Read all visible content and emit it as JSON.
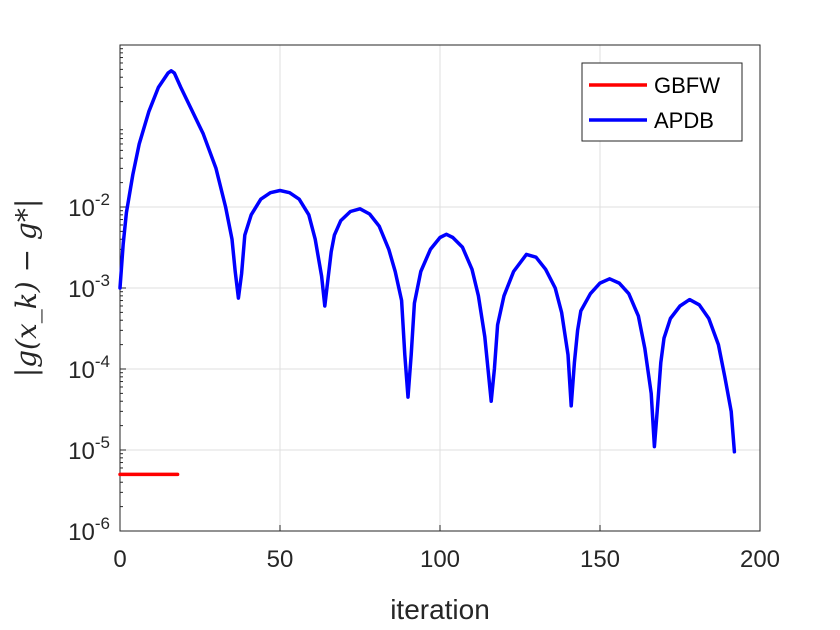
{
  "chart_data": {
    "type": "line",
    "xlabel": "iteration",
    "ylabel": "|g(x_k) − g*|",
    "xlim": [
      0,
      200
    ],
    "ylim_log10": [
      -6,
      0.0
    ],
    "y_scale": "log",
    "grid": true,
    "legend_placement": "top-right",
    "x_ticks": [
      0,
      50,
      100,
      150,
      200
    ],
    "x_tick_labels": [
      "0",
      "50",
      "100",
      "150",
      "200"
    ],
    "y_ticks_exp": [
      -2,
      -3,
      -4,
      -5,
      -6
    ],
    "y_tick_base": "10",
    "y_tick_exponents": [
      "-2",
      "-3",
      "-4",
      "-5",
      "-6"
    ],
    "series": [
      {
        "name": "GBFW",
        "color": "#ff0000",
        "x": [
          0,
          18
        ],
        "y": [
          5e-06,
          5e-06
        ]
      },
      {
        "name": "APDB",
        "color": "#0000ff",
        "x": [
          0,
          1,
          2,
          4,
          6,
          9,
          12,
          15,
          16,
          17,
          19,
          22,
          26,
          30,
          33,
          35,
          36,
          37,
          38,
          39,
          41,
          44,
          47,
          50,
          53,
          56,
          59,
          61,
          63,
          64,
          65,
          66,
          67,
          69,
          72,
          75,
          78,
          81,
          84,
          86,
          88,
          89,
          90,
          91,
          92,
          94,
          97,
          100,
          102,
          104,
          107,
          110,
          112,
          114,
          115,
          116,
          117,
          118,
          120,
          123,
          127,
          130,
          133,
          136,
          138,
          140,
          141,
          142,
          143,
          144,
          147,
          150,
          153,
          156,
          159,
          162,
          164,
          166,
          167,
          168,
          169,
          170,
          172,
          175,
          178,
          181,
          184,
          187,
          189,
          191,
          192
        ],
        "y": [
          0.001,
          0.0035,
          0.0085,
          0.025,
          0.06,
          0.15,
          0.3,
          0.45,
          0.48,
          0.45,
          0.3,
          0.17,
          0.08,
          0.03,
          0.01,
          0.004,
          0.0016,
          0.00075,
          0.0015,
          0.0045,
          0.008,
          0.0125,
          0.015,
          0.016,
          0.015,
          0.0125,
          0.008,
          0.004,
          0.0014,
          0.0006,
          0.0013,
          0.0028,
          0.0045,
          0.0068,
          0.0088,
          0.0095,
          0.0082,
          0.0058,
          0.003,
          0.0016,
          0.0007,
          0.00015,
          4.5e-05,
          0.00015,
          0.00065,
          0.0016,
          0.003,
          0.0042,
          0.0046,
          0.0042,
          0.0032,
          0.0017,
          0.0008,
          0.00025,
          0.0001,
          4e-05,
          0.0001,
          0.00035,
          0.0008,
          0.0016,
          0.0026,
          0.0024,
          0.0017,
          0.001,
          0.0005,
          0.00015,
          3.5e-05,
          0.00012,
          0.0003,
          0.00052,
          0.00085,
          0.00115,
          0.0013,
          0.00115,
          0.00085,
          0.00045,
          0.00018,
          5e-05,
          1.1e-05,
          3.5e-05,
          0.00012,
          0.00024,
          0.00042,
          0.0006,
          0.00072,
          0.00062,
          0.00042,
          0.0002,
          8e-05,
          3e-05,
          9.5e-06
        ]
      }
    ]
  }
}
